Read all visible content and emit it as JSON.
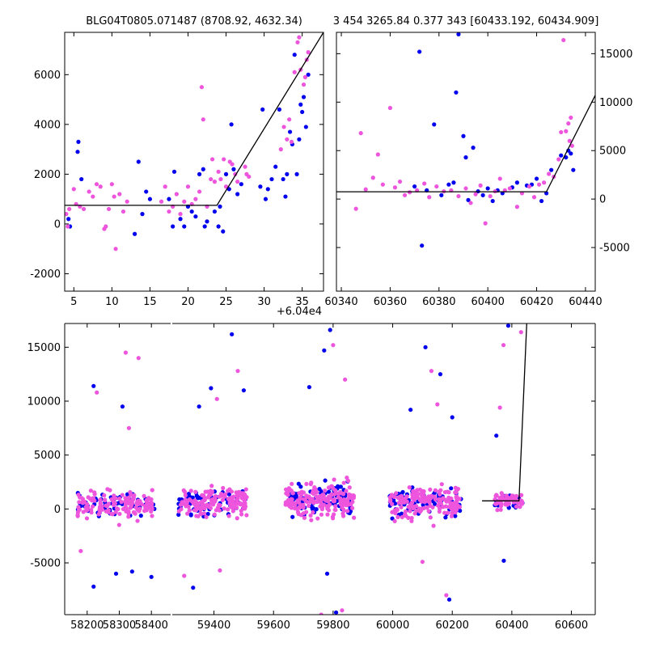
{
  "colors": {
    "series_blue": "#0000ee",
    "series_pink": "#ee55dd",
    "model_line": "#000000",
    "axis": "#000000"
  },
  "chart_data": [
    {
      "id": "zoom",
      "type": "scatter",
      "title": "BLG04T0805.071487 (8708.92, 4632.34)",
      "offset_label": "+6.04e4",
      "xlim": [
        3.8,
        37.8
      ],
      "ylim": [
        -2700,
        7700
      ],
      "xticks": [
        5,
        10,
        15,
        20,
        25,
        30,
        35
      ],
      "yticks": [
        -2000,
        0,
        2000,
        4000,
        6000
      ],
      "ytick_side": "left",
      "model_line": [
        [
          3.8,
          750
        ],
        [
          23.8,
          750
        ],
        [
          37.8,
          7700
        ]
      ],
      "series": [
        {
          "color": "series_blue",
          "points": [
            [
              4.3,
              200
            ],
            [
              4.5,
              -100
            ],
            [
              5.5,
              2900
            ],
            [
              5.6,
              3300
            ],
            [
              6.0,
              1800
            ],
            [
              13.0,
              -400
            ],
            [
              13.5,
              2500
            ],
            [
              14.0,
              400
            ],
            [
              14.5,
              1300
            ],
            [
              15.0,
              1000
            ],
            [
              17.5,
              1000
            ],
            [
              18.0,
              -100
            ],
            [
              18.2,
              2100
            ],
            [
              19.0,
              200
            ],
            [
              19.5,
              -100
            ],
            [
              20.0,
              700
            ],
            [
              20.5,
              500
            ],
            [
              21.0,
              300
            ],
            [
              21.5,
              2000
            ],
            [
              22.0,
              2200
            ],
            [
              22.2,
              -100
            ],
            [
              22.5,
              100
            ],
            [
              23.5,
              500
            ],
            [
              24.0,
              -100
            ],
            [
              24.2,
              700
            ],
            [
              24.6,
              -300
            ],
            [
              25.0,
              2000
            ],
            [
              25.4,
              1400
            ],
            [
              25.7,
              4000
            ],
            [
              26.0,
              2200
            ],
            [
              26.5,
              1200
            ],
            [
              27.0,
              1600
            ],
            [
              29.5,
              1500
            ],
            [
              29.8,
              4600
            ],
            [
              30.2,
              1000
            ],
            [
              30.5,
              1400
            ],
            [
              31.0,
              1800
            ],
            [
              31.5,
              2300
            ],
            [
              32.0,
              4600
            ],
            [
              32.5,
              1800
            ],
            [
              32.8,
              1100
            ],
            [
              33.0,
              2000
            ],
            [
              33.4,
              3700
            ],
            [
              33.7,
              3200
            ],
            [
              34.0,
              6800
            ],
            [
              34.3,
              2000
            ],
            [
              34.6,
              3400
            ],
            [
              34.8,
              4800
            ],
            [
              35.0,
              4500
            ],
            [
              35.2,
              5100
            ],
            [
              35.5,
              3900
            ],
            [
              35.8,
              6000
            ]
          ]
        },
        {
          "color": "series_pink",
          "points": [
            [
              4.0,
              400
            ],
            [
              4.2,
              -100
            ],
            [
              4.4,
              600
            ],
            [
              5.0,
              1400
            ],
            [
              5.3,
              800
            ],
            [
              5.8,
              700
            ],
            [
              6.3,
              600
            ],
            [
              7.0,
              1300
            ],
            [
              7.5,
              1100
            ],
            [
              8.0,
              1600
            ],
            [
              8.5,
              1500
            ],
            [
              9.0,
              -200
            ],
            [
              9.2,
              -100
            ],
            [
              9.6,
              600
            ],
            [
              10.0,
              1600
            ],
            [
              10.3,
              1100
            ],
            [
              10.5,
              -1000
            ],
            [
              11.0,
              1200
            ],
            [
              11.5,
              500
            ],
            [
              12.0,
              900
            ],
            [
              16.5,
              900
            ],
            [
              17.0,
              1500
            ],
            [
              17.5,
              500
            ],
            [
              18.0,
              700
            ],
            [
              18.5,
              1200
            ],
            [
              19.0,
              400
            ],
            [
              19.5,
              900
            ],
            [
              20.0,
              1500
            ],
            [
              20.5,
              800
            ],
            [
              21.0,
              1000
            ],
            [
              21.5,
              1300
            ],
            [
              21.8,
              5500
            ],
            [
              22.0,
              4200
            ],
            [
              22.5,
              700
            ],
            [
              23.0,
              1800
            ],
            [
              23.2,
              2600
            ],
            [
              23.5,
              1700
            ],
            [
              24.0,
              2100
            ],
            [
              24.3,
              1800
            ],
            [
              24.7,
              2600
            ],
            [
              25.0,
              1500
            ],
            [
              25.5,
              2500
            ],
            [
              25.8,
              2400
            ],
            [
              26.2,
              2000
            ],
            [
              26.5,
              1700
            ],
            [
              27.5,
              2300
            ],
            [
              27.7,
              2000
            ],
            [
              28.0,
              1900
            ],
            [
              32.2,
              3000
            ],
            [
              32.6,
              3900
            ],
            [
              33.0,
              3400
            ],
            [
              33.3,
              4200
            ],
            [
              33.6,
              3300
            ],
            [
              34.0,
              6100
            ],
            [
              34.4,
              7300
            ],
            [
              34.6,
              7500
            ],
            [
              34.8,
              6200
            ],
            [
              35.2,
              5600
            ],
            [
              35.4,
              5900
            ],
            [
              35.6,
              6600
            ],
            [
              35.8,
              6900
            ]
          ]
        }
      ]
    },
    {
      "id": "mid",
      "type": "scatter",
      "title": "3 454 3265.84 0.377 343 [60433.192, 60434.909]",
      "xlim": [
        60338,
        60444
      ],
      "ylim": [
        -9500,
        17200
      ],
      "xticks": [
        60340,
        60360,
        60380,
        60400,
        60420,
        60440
      ],
      "yticks": [
        -5000,
        0,
        5000,
        10000,
        15000
      ],
      "ytick_side": "right",
      "model_line": [
        [
          60338,
          750
        ],
        [
          60424,
          750
        ],
        [
          60444,
          10700
        ]
      ],
      "series": [
        {
          "color": "series_blue",
          "points": [
            [
              60370,
              1300
            ],
            [
              60372,
              15200
            ],
            [
              60373,
              -4800
            ],
            [
              60375,
              900
            ],
            [
              60378,
              7700
            ],
            [
              60381,
              400
            ],
            [
              60384,
              1500
            ],
            [
              60386,
              1700
            ],
            [
              60387,
              11000
            ],
            [
              60388,
              17000
            ],
            [
              60390,
              6500
            ],
            [
              60391,
              4300
            ],
            [
              60392,
              -100
            ],
            [
              60394,
              5300
            ],
            [
              60396,
              800
            ],
            [
              60398,
              400
            ],
            [
              60400,
              1100
            ],
            [
              60402,
              -200
            ],
            [
              60404,
              900
            ],
            [
              60406,
              600
            ],
            [
              60410,
              1200
            ],
            [
              60412,
              1700
            ],
            [
              60416,
              1400
            ],
            [
              60418,
              1500
            ],
            [
              60420,
              2100
            ],
            [
              60422,
              -200
            ],
            [
              60424,
              600
            ],
            [
              60426,
              3000
            ],
            [
              60430,
              4500
            ],
            [
              60432,
              4300
            ],
            [
              60433,
              5000
            ],
            [
              60434,
              4700
            ],
            [
              60435,
              3000
            ]
          ]
        },
        {
          "color": "series_pink",
          "points": [
            [
              60348,
              6800
            ],
            [
              60346,
              -1000
            ],
            [
              60350,
              1000
            ],
            [
              60353,
              2200
            ],
            [
              60355,
              4600
            ],
            [
              60357,
              1500
            ],
            [
              60360,
              9400
            ],
            [
              60362,
              1200
            ],
            [
              60364,
              1800
            ],
            [
              60366,
              400
            ],
            [
              60368,
              700
            ],
            [
              60371,
              900
            ],
            [
              60374,
              1600
            ],
            [
              60376,
              200
            ],
            [
              60379,
              1300
            ],
            [
              60382,
              800
            ],
            [
              60385,
              900
            ],
            [
              60388,
              300
            ],
            [
              60391,
              1100
            ],
            [
              60393,
              -400
            ],
            [
              60395,
              500
            ],
            [
              60397,
              1400
            ],
            [
              60399,
              -2500
            ],
            [
              60401,
              300
            ],
            [
              60403,
              800
            ],
            [
              60405,
              2100
            ],
            [
              60407,
              900
            ],
            [
              60409,
              1100
            ],
            [
              60412,
              -800
            ],
            [
              60414,
              600
            ],
            [
              60417,
              1300
            ],
            [
              60419,
              200
            ],
            [
              60421,
              1500
            ],
            [
              60423,
              1700
            ],
            [
              60425,
              2600
            ],
            [
              60427,
              2300
            ],
            [
              60429,
              4100
            ],
            [
              60430,
              6900
            ],
            [
              60431,
              16400
            ],
            [
              60432,
              7000
            ],
            [
              60433,
              7800
            ],
            [
              60434,
              8400
            ],
            [
              60433.5,
              6000
            ],
            [
              60434.5,
              5500
            ]
          ]
        }
      ]
    },
    {
      "id": "full",
      "type": "scatter",
      "broken_x": true,
      "ylim": [
        -9800,
        17200
      ],
      "yticks": [
        -5000,
        0,
        5000,
        10000,
        15000
      ],
      "segments": [
        {
          "xlim": [
            58130,
            58460
          ],
          "xticks": [
            58200,
            58300,
            58400
          ]
        },
        {
          "xlim": [
            59260,
            60680
          ],
          "xticks": [
            59400,
            59600,
            59800,
            60000,
            60200,
            60400,
            60600
          ]
        }
      ],
      "model_line": [
        [
          60300,
          750
        ],
        [
          60424,
          750
        ],
        [
          60450,
          17200
        ]
      ],
      "clusters": [
        {
          "x0": 58170,
          "x1": 58410,
          "yspread": 1300,
          "ycenter": 400,
          "n_blue": 60,
          "n_pink": 150,
          "outliers": [
            [
              58220,
              11400
            ],
            [
              58230,
              10800
            ],
            [
              58310,
              9500
            ],
            [
              58320,
              14500
            ],
            [
              58340,
              -5800
            ],
            [
              58330,
              7500
            ],
            [
              58220,
              -7200
            ],
            [
              58360,
              14000
            ],
            [
              58400,
              -6300
            ],
            [
              58180,
              -3900
            ],
            [
              58290,
              -6000
            ]
          ]
        },
        {
          "x0": 59280,
          "x1": 59510,
          "yspread": 1400,
          "ycenter": 600,
          "n_blue": 70,
          "n_pink": 160,
          "outliers": [
            [
              59390,
              11200
            ],
            [
              59410,
              10200
            ],
            [
              59460,
              16200
            ],
            [
              59300,
              -6200
            ],
            [
              59330,
              -7300
            ],
            [
              59480,
              12800
            ],
            [
              59350,
              9500
            ],
            [
              59420,
              -5700
            ],
            [
              59500,
              11000
            ]
          ]
        },
        {
          "x0": 59640,
          "x1": 59870,
          "yspread": 1600,
          "ycenter": 900,
          "n_blue": 90,
          "n_pink": 180,
          "outliers": [
            [
              59790,
              16600
            ],
            [
              59800,
              15200
            ],
            [
              59810,
              -9600
            ],
            [
              59830,
              -9400
            ],
            [
              59780,
              -6000
            ],
            [
              59760,
              -9800
            ],
            [
              59720,
              11300
            ],
            [
              59840,
              12000
            ],
            [
              59770,
              14700
            ]
          ]
        },
        {
          "x0": 59990,
          "x1": 60230,
          "yspread": 1500,
          "ycenter": 700,
          "n_blue": 80,
          "n_pink": 170,
          "outliers": [
            [
              60110,
              15000
            ],
            [
              60130,
              12800
            ],
            [
              60160,
              12500
            ],
            [
              60180,
              -8000
            ],
            [
              60190,
              -8400
            ],
            [
              60100,
              -4900
            ],
            [
              60060,
              9200
            ],
            [
              60150,
              9700
            ],
            [
              60200,
              8500
            ]
          ]
        },
        {
          "x0": 60340,
          "x1": 60436,
          "yspread": 700,
          "ycenter": 800,
          "n_blue": 25,
          "n_pink": 60,
          "outliers": [
            [
              60388,
              17000
            ],
            [
              60372,
              15200
            ],
            [
              60373,
              -4800
            ],
            [
              60360,
              9400
            ],
            [
              60348,
              6800
            ],
            [
              60431,
              16400
            ]
          ]
        }
      ]
    }
  ]
}
